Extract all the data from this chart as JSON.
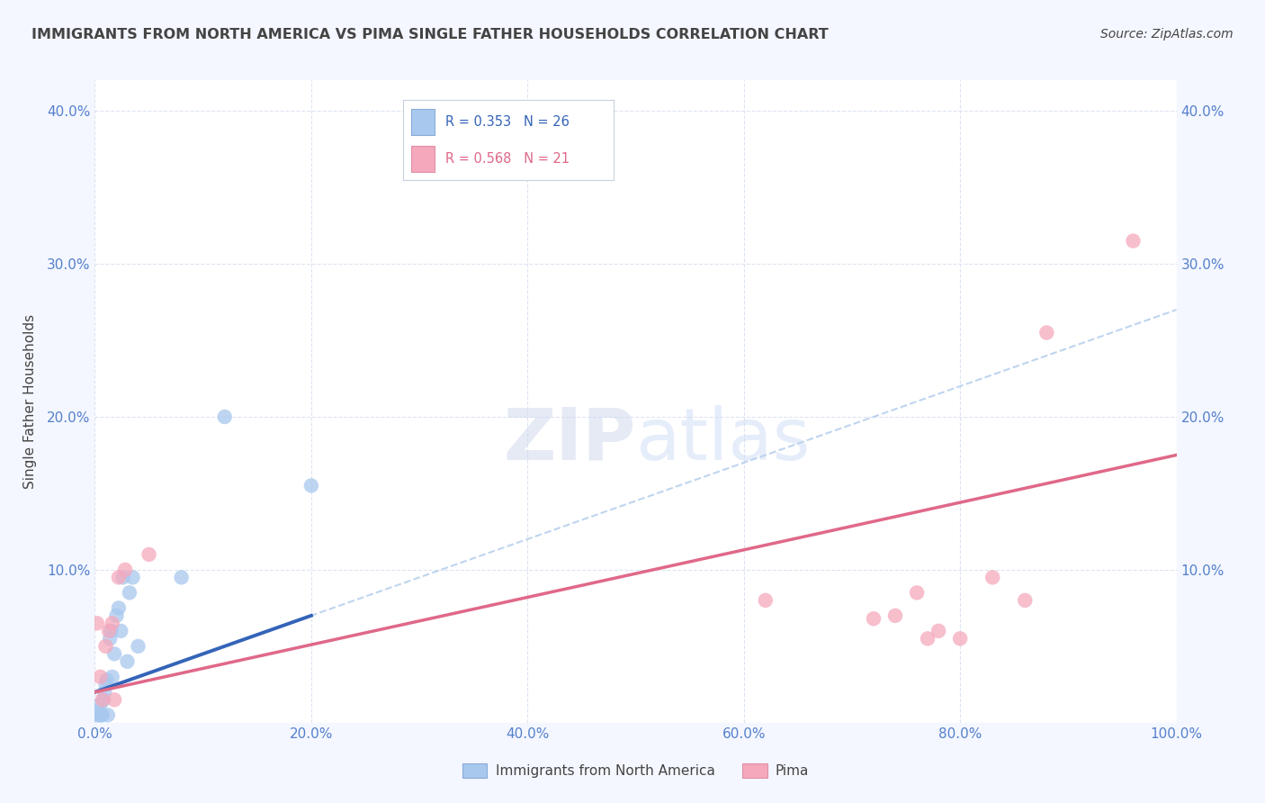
{
  "title": "IMMIGRANTS FROM NORTH AMERICA VS PIMA SINGLE FATHER HOUSEHOLDS CORRELATION CHART",
  "source": "Source: ZipAtlas.com",
  "ylabel": "Single Father Households",
  "legend_labels": [
    "Immigrants from North America",
    "Pima"
  ],
  "r_blue_text": "R = 0.353",
  "n_blue_text": "N = 26",
  "r_pink_text": "R = 0.568",
  "n_pink_text": "N = 21",
  "xlim": [
    0,
    1.0
  ],
  "ylim": [
    0,
    0.42
  ],
  "xticks": [
    0.0,
    0.2,
    0.4,
    0.6,
    0.8,
    1.0
  ],
  "yticks": [
    0.0,
    0.1,
    0.2,
    0.3,
    0.4
  ],
  "xtick_labels": [
    "0.0%",
    "20.0%",
    "40.0%",
    "60.0%",
    "80.0%",
    "100.0%"
  ],
  "ytick_labels": [
    "",
    "10.0%",
    "20.0%",
    "30.0%",
    "40.0%"
  ],
  "blue_scatter_color": "#a8c8ee",
  "pink_scatter_color": "#f5a8bc",
  "blue_line_color": "#3464b8",
  "pink_line_color": "#e06888",
  "blue_dashed_color": "#b8d0ee",
  "axis_tick_color": "#5580cc",
  "title_color": "#444444",
  "grid_color": "#dde4f0",
  "fig_bg_color": "#f4f7ff",
  "plot_bg_color": "#ffffff",
  "watermark_color": "#d0daee",
  "blue_scatter_x": [
    0.002,
    0.003,
    0.004,
    0.005,
    0.006,
    0.007,
    0.008,
    0.009,
    0.01,
    0.011,
    0.012,
    0.014,
    0.015,
    0.016,
    0.018,
    0.02,
    0.022,
    0.024,
    0.026,
    0.03,
    0.032,
    0.035,
    0.04,
    0.08,
    0.12,
    0.2
  ],
  "blue_scatter_y": [
    0.005,
    0.008,
    0.005,
    0.012,
    0.005,
    0.005,
    0.015,
    0.02,
    0.025,
    0.028,
    0.005,
    0.055,
    0.06,
    0.03,
    0.045,
    0.07,
    0.075,
    0.06,
    0.095,
    0.04,
    0.085,
    0.095,
    0.05,
    0.095,
    0.2,
    0.155
  ],
  "pink_scatter_x": [
    0.002,
    0.005,
    0.007,
    0.01,
    0.013,
    0.016,
    0.018,
    0.022,
    0.028,
    0.05,
    0.62,
    0.72,
    0.74,
    0.76,
    0.77,
    0.78,
    0.8,
    0.83,
    0.86,
    0.88,
    0.96
  ],
  "pink_scatter_y": [
    0.065,
    0.03,
    0.015,
    0.05,
    0.06,
    0.065,
    0.015,
    0.095,
    0.1,
    0.11,
    0.08,
    0.068,
    0.07,
    0.085,
    0.055,
    0.06,
    0.055,
    0.095,
    0.08,
    0.255,
    0.315
  ],
  "blue_line_x0": 0.0,
  "blue_line_y0": 0.02,
  "blue_line_x1": 0.2,
  "blue_line_y1": 0.09,
  "blue_line_xend": 1.0,
  "blue_line_yend": 0.27,
  "pink_line_x0": 0.0,
  "pink_line_y0": 0.02,
  "pink_line_x1": 1.0,
  "pink_line_y1": 0.175
}
